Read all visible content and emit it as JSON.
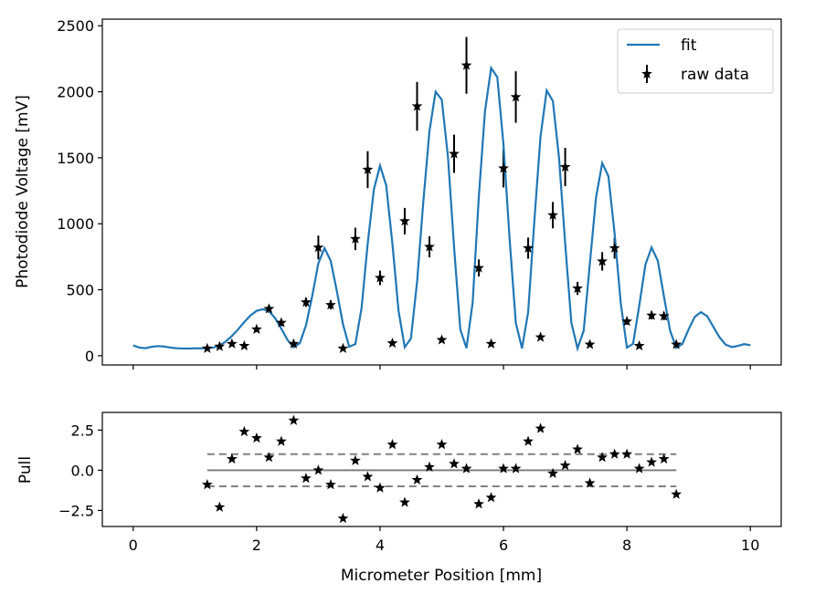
{
  "chart_data": [
    {
      "type": "line",
      "xlim": [
        -0.5,
        10.5
      ],
      "ylim": [
        -70,
        2550
      ],
      "ylabel": "Photodiode Voltage [mV]",
      "xlabel": "",
      "yticks": [
        "0",
        "500",
        "1000",
        "1500",
        "2000",
        "2500"
      ],
      "ytick_values": [
        0,
        500,
        1000,
        1500,
        2000,
        2500
      ],
      "xtick_values": [
        0,
        2,
        4,
        6,
        8,
        10
      ],
      "legend": {
        "position": "top-right",
        "fit_label": "fit",
        "data_label": "raw data"
      },
      "series": [
        {
          "name": "fit",
          "color": "#1f77b4",
          "x": [
            0.0,
            0.1,
            0.2,
            0.3,
            0.4,
            0.5,
            0.6,
            0.7,
            0.8,
            0.9,
            1.0,
            1.1,
            1.2,
            1.3,
            1.4,
            1.5,
            1.6,
            1.7,
            1.8,
            1.9,
            2.0,
            2.1,
            2.2,
            2.3,
            2.4,
            2.5,
            2.6,
            2.7,
            2.8,
            2.9,
            3.0,
            3.1,
            3.2,
            3.3,
            3.4,
            3.5,
            3.6,
            3.7,
            3.8,
            3.9,
            4.0,
            4.1,
            4.2,
            4.3,
            4.4,
            4.5,
            4.6,
            4.7,
            4.8,
            4.9,
            5.0,
            5.1,
            5.2,
            5.3,
            5.4,
            5.5,
            5.6,
            5.7,
            5.8,
            5.9,
            6.0,
            6.1,
            6.2,
            6.3,
            6.4,
            6.5,
            6.6,
            6.7,
            6.8,
            6.9,
            7.0,
            7.1,
            7.2,
            7.3,
            7.4,
            7.5,
            7.6,
            7.7,
            7.8,
            7.9,
            8.0,
            8.1,
            8.2,
            8.3,
            8.4,
            8.5,
            8.6,
            8.7,
            8.8,
            8.9,
            9.0,
            9.1,
            9.2,
            9.3,
            9.4,
            9.5,
            9.6,
            9.7,
            9.8,
            9.9,
            10.0
          ],
          "y": [
            78,
            62,
            57,
            68,
            73,
            70,
            62,
            57,
            55,
            55,
            56,
            56,
            57,
            62,
            78,
            108,
            150,
            200,
            255,
            305,
            340,
            352,
            338,
            285,
            205,
            120,
            64,
            95,
            230,
            450,
            700,
            815,
            720,
            490,
            238,
            68,
            88,
            360,
            850,
            1260,
            1440,
            1290,
            850,
            340,
            65,
            130,
            560,
            1160,
            1700,
            2000,
            1940,
            1510,
            820,
            200,
            58,
            400,
            1200,
            1850,
            2180,
            2110,
            1600,
            880,
            250,
            56,
            330,
            1020,
            1660,
            2010,
            1930,
            1500,
            850,
            250,
            55,
            190,
            700,
            1200,
            1460,
            1360,
            930,
            400,
            62,
            90,
            380,
            690,
            820,
            720,
            450,
            190,
            60,
            90,
            200,
            295,
            330,
            300,
            220,
            140,
            84,
            66,
            75,
            88,
            80
          ]
        },
        {
          "name": "raw data",
          "marker": "star",
          "color": "#000000",
          "x": [
            1.2,
            1.4,
            1.6,
            1.8,
            2.0,
            2.2,
            2.4,
            2.6,
            2.8,
            3.0,
            3.2,
            3.4,
            3.6,
            3.8,
            4.0,
            4.2,
            4.4,
            4.6,
            4.8,
            5.0,
            5.2,
            5.4,
            5.6,
            5.8,
            6.0,
            6.2,
            6.4,
            6.6,
            6.8,
            7.0,
            7.2,
            7.4,
            7.6,
            7.8,
            8.0,
            8.2,
            8.4,
            8.6,
            8.8
          ],
          "y": [
            55,
            70,
            90,
            75,
            200,
            355,
            250,
            90,
            405,
            820,
            385,
            55,
            885,
            1410,
            590,
            95,
            1020,
            1890,
            825,
            120,
            1530,
            2200,
            665,
            90,
            1420,
            1960,
            815,
            140,
            1065,
            1430,
            510,
            85,
            715,
            815,
            260,
            75,
            305,
            300,
            85
          ],
          "yerr": [
            10,
            10,
            12,
            10,
            20,
            30,
            25,
            12,
            35,
            90,
            35,
            10,
            85,
            140,
            55,
            15,
            100,
            185,
            80,
            15,
            145,
            215,
            65,
            12,
            145,
            195,
            80,
            15,
            100,
            145,
            50,
            12,
            70,
            80,
            25,
            10,
            30,
            30,
            12
          ]
        }
      ]
    },
    {
      "type": "scatter",
      "xlim": [
        -0.5,
        10.5
      ],
      "ylim": [
        -3.5,
        3.6
      ],
      "xlabel": "Micrometer Position [mm]",
      "ylabel": "Pull",
      "xticks": [
        "0",
        "2",
        "4",
        "6",
        "8",
        "10"
      ],
      "xtick_values": [
        0,
        2,
        4,
        6,
        8,
        10
      ],
      "yticks": [
        "2.5",
        "0.0",
        "−2.5"
      ],
      "ytick_values": [
        2.5,
        0.0,
        -2.5
      ],
      "reference_lines": {
        "x_range": [
          1.2,
          8.8
        ],
        "zero": 0.0,
        "bands": [
          1.0,
          -1.0
        ],
        "color": "#808080"
      },
      "series": [
        {
          "name": "pull",
          "marker": "star",
          "color": "#000000",
          "x": [
            1.2,
            1.4,
            1.6,
            1.8,
            2.0,
            2.2,
            2.4,
            2.6,
            2.8,
            3.0,
            3.2,
            3.4,
            3.6,
            3.8,
            4.0,
            4.2,
            4.4,
            4.6,
            4.8,
            5.0,
            5.2,
            5.4,
            5.6,
            5.8,
            6.0,
            6.2,
            6.4,
            6.6,
            6.8,
            7.0,
            7.2,
            7.4,
            7.6,
            7.8,
            8.0,
            8.2,
            8.4,
            8.6,
            8.8
          ],
          "y": [
            -0.9,
            -2.3,
            0.7,
            2.4,
            2.0,
            0.8,
            1.8,
            3.1,
            -0.5,
            0.0,
            -0.9,
            -3.0,
            0.6,
            -0.4,
            -1.1,
            1.6,
            -2.0,
            -0.6,
            0.2,
            1.6,
            0.4,
            0.1,
            -2.1,
            -1.7,
            0.1,
            0.1,
            1.8,
            2.6,
            -0.2,
            0.3,
            1.3,
            -0.8,
            0.8,
            1.0,
            1.0,
            0.1,
            0.5,
            0.7,
            -1.5
          ]
        }
      ]
    }
  ]
}
